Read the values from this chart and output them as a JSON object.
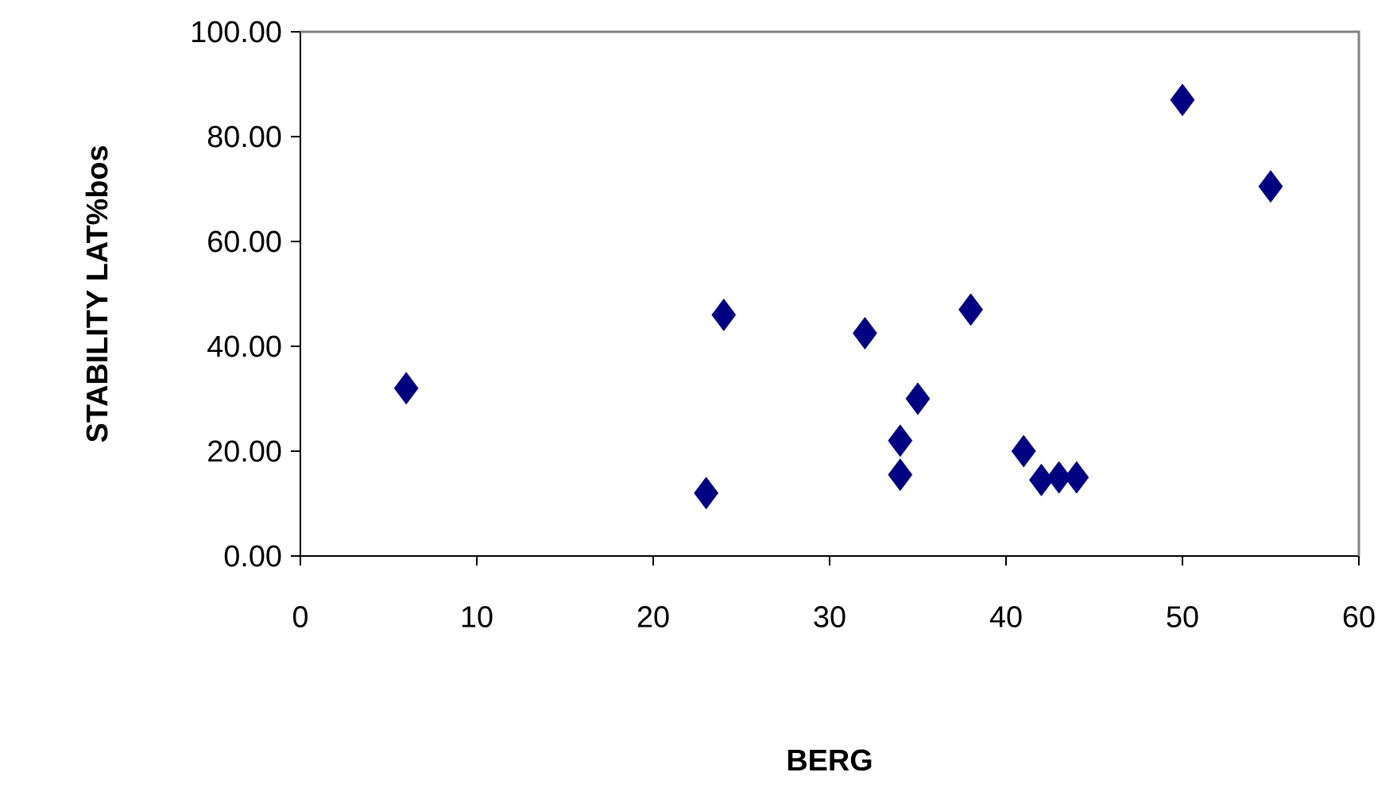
{
  "chart_data": {
    "type": "scatter",
    "xlabel": "BERG",
    "ylabel": "STABILITY LAT%bos",
    "x": [
      6,
      23,
      24,
      32,
      34,
      34,
      35,
      38,
      41,
      42,
      43,
      44,
      50,
      55
    ],
    "values": [
      32,
      12,
      46,
      42.5,
      22,
      15.5,
      30,
      47,
      20,
      14.5,
      15,
      15,
      87,
      70.5
    ],
    "color": "#000080",
    "marker": "diamond",
    "grid": false,
    "xlim": [
      0,
      60
    ],
    "xticks": [
      0,
      10,
      20,
      30,
      40,
      50,
      60
    ],
    "ylim": [
      0,
      100
    ],
    "yticks": [
      {
        "value": 0,
        "label": "0.00"
      },
      {
        "value": 20,
        "label": "20.00"
      },
      {
        "value": 40,
        "label": "40.00"
      },
      {
        "value": 60,
        "label": "60.00"
      },
      {
        "value": 80,
        "label": "80.00"
      },
      {
        "value": 100,
        "label": "100.00"
      }
    ]
  }
}
